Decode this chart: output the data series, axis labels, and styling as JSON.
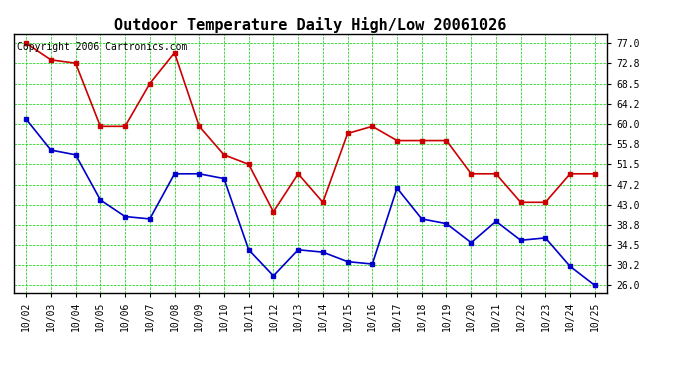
{
  "title": "Outdoor Temperature Daily High/Low 20061026",
  "copyright": "Copyright 2006 Cartronics.com",
  "dates": [
    "10/02",
    "10/03",
    "10/04",
    "10/05",
    "10/06",
    "10/07",
    "10/08",
    "10/09",
    "10/10",
    "10/11",
    "10/12",
    "10/13",
    "10/14",
    "10/15",
    "10/16",
    "10/17",
    "10/18",
    "10/19",
    "10/20",
    "10/21",
    "10/22",
    "10/23",
    "10/24",
    "10/25"
  ],
  "high_temps": [
    77.0,
    73.5,
    72.8,
    59.5,
    59.5,
    68.5,
    75.0,
    59.5,
    53.5,
    51.5,
    41.5,
    49.5,
    43.5,
    58.0,
    59.5,
    56.5,
    56.5,
    56.5,
    49.5,
    49.5,
    43.5,
    43.5,
    49.5,
    49.5
  ],
  "low_temps": [
    61.0,
    54.5,
    53.5,
    44.0,
    40.5,
    40.0,
    49.5,
    49.5,
    48.5,
    33.5,
    28.0,
    33.5,
    33.0,
    31.0,
    30.5,
    46.5,
    40.0,
    39.0,
    35.0,
    39.5,
    35.5,
    36.0,
    30.0,
    26.0
  ],
  "high_color": "#cc0000",
  "low_color": "#0000cc",
  "grid_color": "#00cc00",
  "bg_color": "#ffffff",
  "yticks": [
    26.0,
    30.2,
    34.5,
    38.8,
    43.0,
    47.2,
    51.5,
    55.8,
    60.0,
    64.2,
    68.5,
    72.8,
    77.0
  ],
  "ylim": [
    24.5,
    79.0
  ],
  "xlim": [
    -0.5,
    23.5
  ],
  "title_fontsize": 11,
  "copyright_fontsize": 7,
  "tick_fontsize": 7,
  "marker_size": 3,
  "linewidth": 1.2
}
